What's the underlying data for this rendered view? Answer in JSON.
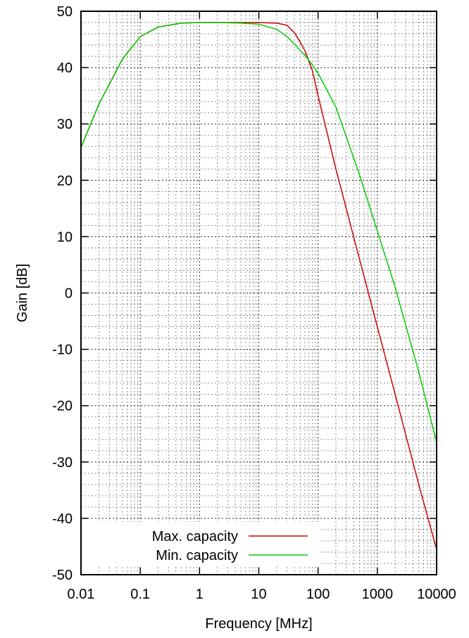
{
  "chart_data": {
    "type": "line",
    "title": "",
    "xlabel": "Frequency [MHz]",
    "ylabel": "Gain [dB]",
    "xscale": "log",
    "xlim": [
      0.01,
      10000
    ],
    "ylim": [
      -50,
      50
    ],
    "xticks": [
      0.01,
      0.1,
      1,
      10,
      100,
      1000,
      10000
    ],
    "xtick_labels": [
      "0.01",
      "0.1",
      "1",
      "10",
      "100",
      "1000",
      "10000"
    ],
    "yticks": [
      -50,
      -40,
      -30,
      -20,
      -10,
      0,
      10,
      20,
      30,
      40,
      50
    ],
    "ytick_labels": [
      "-50",
      "-40",
      "-30",
      "-20",
      "-10",
      "0",
      "10",
      "20",
      "30",
      "40",
      "50"
    ],
    "grid": true,
    "legend_position": "bottom-left",
    "series": [
      {
        "name": "Max. capacity",
        "color": "#cc0000",
        "x": [
          0.01,
          0.02,
          0.05,
          0.1,
          0.2,
          0.5,
          1,
          2,
          5,
          10,
          20,
          30,
          40,
          50,
          60,
          80,
          100,
          200,
          500,
          1000,
          2000,
          5000,
          10000
        ],
        "y": [
          25.8,
          33.5,
          41.5,
          45.5,
          47.2,
          47.9,
          48.0,
          48.0,
          48.0,
          48.0,
          47.9,
          47.5,
          46.2,
          44.5,
          43.0,
          39.5,
          35.0,
          22.0,
          6.0,
          -6.0,
          -18.0,
          -34.0,
          -45.5
        ]
      },
      {
        "name": "Min. capacity",
        "color": "#00cc00",
        "x": [
          0.01,
          0.02,
          0.05,
          0.1,
          0.2,
          0.5,
          1,
          2,
          5,
          10,
          20,
          30,
          40,
          50,
          60,
          80,
          100,
          200,
          500,
          1000,
          2000,
          5000,
          10000
        ],
        "y": [
          25.8,
          33.5,
          41.5,
          45.5,
          47.2,
          47.9,
          48.0,
          48.0,
          47.9,
          47.7,
          46.8,
          45.5,
          44.2,
          43.0,
          42.2,
          40.5,
          39.0,
          33.0,
          21.0,
          11.0,
          1.0,
          -14.0,
          -26.5
        ]
      }
    ]
  }
}
